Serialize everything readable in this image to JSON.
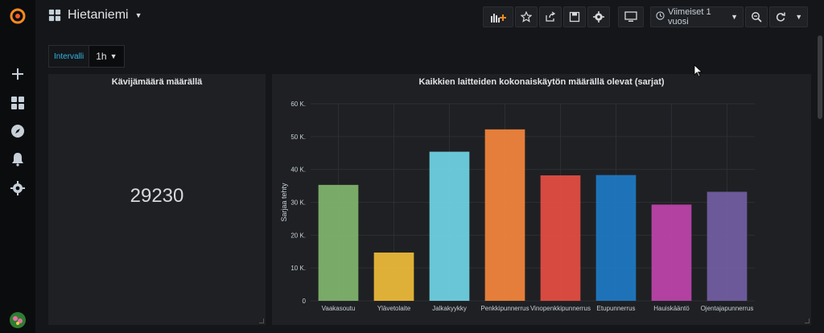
{
  "app": {
    "dashboard_title": "Hietaniemi"
  },
  "toolbar": {
    "time_range": "Viimeiset 1 vuosi"
  },
  "variables": {
    "label": "Intervalli",
    "value": "1h"
  },
  "stat_panel": {
    "title": "Kävijämäärä määrällä",
    "value": "29230"
  },
  "chart_panel": {
    "title": "Kaikkien laitteiden kokonaiskäytön määrällä olevat (sarjat)"
  },
  "chart_data": {
    "type": "bar",
    "title": "Kaikkien laitteiden kokonaiskäytön määrällä olevat (sarjat)",
    "ylabel": "Sarjaa tehty",
    "xlabel": "",
    "ylim": [
      0,
      60000
    ],
    "yticks": [
      "0",
      "10 K.",
      "20 K.",
      "30 K.",
      "40 K.",
      "50 K.",
      "60 K."
    ],
    "categories": [
      "Vaakasoutu",
      "Ylävetolaite",
      "Jalkakyykky",
      "Penkkipunnerrus",
      "Vinopenkkipunnerrus",
      "Etupunnerrus",
      "Hauiskääntö",
      "Ojentajapunnerrus"
    ],
    "values": [
      35300,
      14700,
      45400,
      52200,
      38200,
      38300,
      29300,
      33200
    ],
    "colors": [
      "#7eb26d",
      "#eab839",
      "#6ed0e0",
      "#ef843c",
      "#e24d42",
      "#1f78c1",
      "#ba43a9",
      "#705da0"
    ],
    "grid": true
  }
}
